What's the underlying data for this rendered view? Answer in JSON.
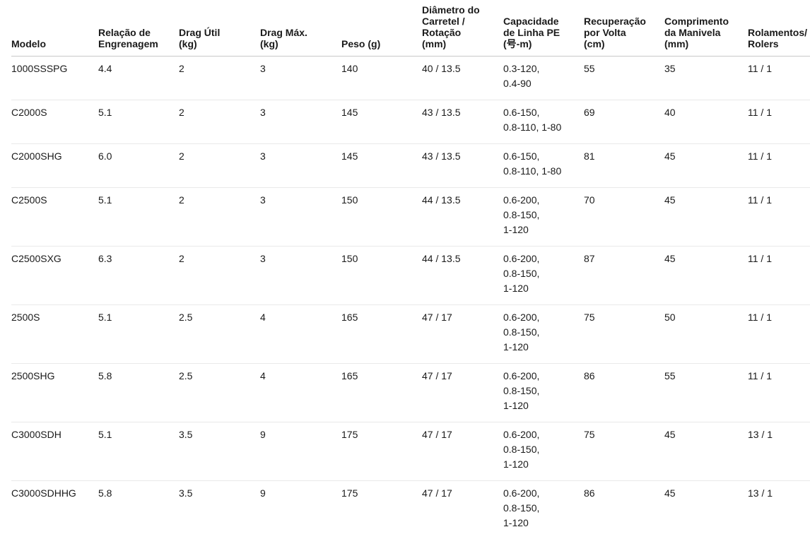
{
  "colors": {
    "background": "#ffffff",
    "text": "#1a1a1a",
    "header_divider": "#c8c8c8",
    "row_divider": "#e9e9e9"
  },
  "table": {
    "columns": [
      {
        "id": "modelo",
        "lines": [
          "Modelo"
        ]
      },
      {
        "id": "relacao-engrenagem",
        "lines": [
          "Relação de",
          "Engrenagem"
        ]
      },
      {
        "id": "drag-util",
        "lines": [
          "Drag Útil",
          "(kg)"
        ]
      },
      {
        "id": "drag-max",
        "lines": [
          "Drag Máx.",
          "(kg)"
        ]
      },
      {
        "id": "peso",
        "lines": [
          "Peso (g)"
        ]
      },
      {
        "id": "diametro-carretel",
        "lines": [
          "Diâmetro do",
          "Carretel /",
          "Rotação",
          "(mm)"
        ]
      },
      {
        "id": "capacidade-linha-pe",
        "lines": [
          "Capacidade",
          "de Linha PE",
          "(号-m)"
        ]
      },
      {
        "id": "recuperacao-volta",
        "lines": [
          "Recuperação",
          "por Volta",
          "(cm)"
        ]
      },
      {
        "id": "comprimento-manivela",
        "lines": [
          "Comprimento",
          "da Manivela",
          "(mm)"
        ]
      },
      {
        "id": "rolamentos",
        "lines": [
          "Rolamentos/",
          "Rolers"
        ]
      }
    ],
    "rows": [
      [
        [
          "1000SSSPG"
        ],
        [
          "4.4"
        ],
        [
          "2"
        ],
        [
          "3"
        ],
        [
          "140"
        ],
        [
          "40 / 13.5"
        ],
        [
          "0.3-120,",
          "0.4-90"
        ],
        [
          "55"
        ],
        [
          "35"
        ],
        [
          "11 / 1"
        ]
      ],
      [
        [
          "C2000S"
        ],
        [
          "5.1"
        ],
        [
          "2"
        ],
        [
          "3"
        ],
        [
          "145"
        ],
        [
          "43 / 13.5"
        ],
        [
          "0.6-150,",
          "0.8-110, 1-80"
        ],
        [
          "69"
        ],
        [
          "40"
        ],
        [
          "11 / 1"
        ]
      ],
      [
        [
          "C2000SHG"
        ],
        [
          "6.0"
        ],
        [
          "2"
        ],
        [
          "3"
        ],
        [
          "145"
        ],
        [
          "43 / 13.5"
        ],
        [
          "0.6-150,",
          "0.8-110, 1-80"
        ],
        [
          "81"
        ],
        [
          "45"
        ],
        [
          "11 / 1"
        ]
      ],
      [
        [
          "C2500S"
        ],
        [
          "5.1"
        ],
        [
          "2"
        ],
        [
          "3"
        ],
        [
          "150"
        ],
        [
          "44 / 13.5"
        ],
        [
          "0.6-200,",
          "0.8-150,",
          "1-120"
        ],
        [
          "70"
        ],
        [
          "45"
        ],
        [
          "11 / 1"
        ]
      ],
      [
        [
          "C2500SXG"
        ],
        [
          "6.3"
        ],
        [
          "2"
        ],
        [
          "3"
        ],
        [
          "150"
        ],
        [
          "44 / 13.5"
        ],
        [
          "0.6-200,",
          "0.8-150,",
          "1-120"
        ],
        [
          "87"
        ],
        [
          "45"
        ],
        [
          "11 / 1"
        ]
      ],
      [
        [
          "2500S"
        ],
        [
          "5.1"
        ],
        [
          "2.5"
        ],
        [
          "4"
        ],
        [
          "165"
        ],
        [
          "47 / 17"
        ],
        [
          "0.6-200,",
          "0.8-150,",
          "1-120"
        ],
        [
          "75"
        ],
        [
          "50"
        ],
        [
          "11 / 1"
        ]
      ],
      [
        [
          "2500SHG"
        ],
        [
          "5.8"
        ],
        [
          "2.5"
        ],
        [
          "4"
        ],
        [
          "165"
        ],
        [
          "47 / 17"
        ],
        [
          "0.6-200,",
          "0.8-150,",
          "1-120"
        ],
        [
          "86"
        ],
        [
          "55"
        ],
        [
          "11 / 1"
        ]
      ],
      [
        [
          "C3000SDH"
        ],
        [
          "5.1"
        ],
        [
          "3.5"
        ],
        [
          "9"
        ],
        [
          "175"
        ],
        [
          "47 / 17"
        ],
        [
          "0.6-200,",
          "0.8-150,",
          "1-120"
        ],
        [
          "75"
        ],
        [
          "45"
        ],
        [
          "13 / 1"
        ]
      ],
      [
        [
          "C3000SDHHG"
        ],
        [
          "5.8"
        ],
        [
          "3.5"
        ],
        [
          "9"
        ],
        [
          "175"
        ],
        [
          "47 / 17"
        ],
        [
          "0.6-200,",
          "0.8-150,",
          "1-120"
        ],
        [
          "86"
        ],
        [
          "45"
        ],
        [
          "13 / 1"
        ]
      ]
    ]
  }
}
